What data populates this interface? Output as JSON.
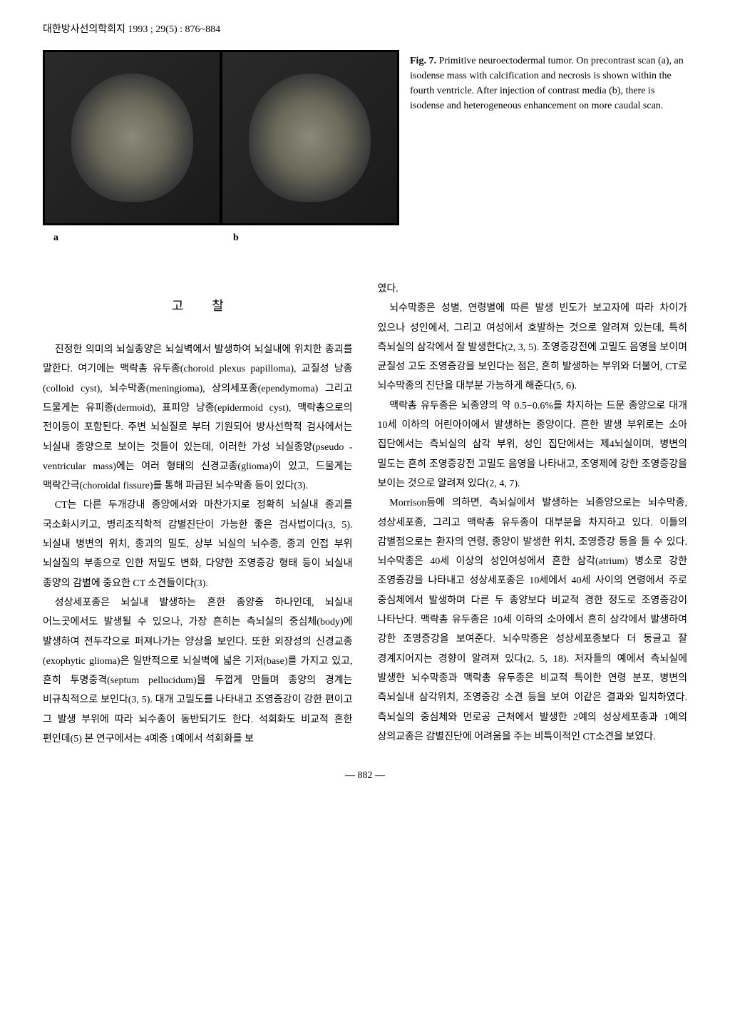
{
  "header": "대한방사선의학회지 1993 ; 29(5) : 876~884",
  "figure": {
    "label_a": "a",
    "label_b": "b",
    "caption_bold": "Fig. 7.",
    "caption_text": " Primitive neuroectodermal tumor. On precontrast scan (a), an isodense mass with calcification and necrosis is shown within the fourth ventricle. After injection of contrast media (b), there is isodense and heterogeneous enhancement on more caudal scan."
  },
  "section_title": "고찰",
  "left_column": {
    "p1": "진정한 의미의 뇌실종양은 뇌실벽에서 발생하여 뇌실내에 위치한 종괴를 말한다. 여기에는 맥락총 유두종(choroid plexus papilloma), 교질성 낭종(colloid cyst), 뇌수막종(meningioma), 상의세포종(ependymoma) 그리고 드물게는 유피종(dermoid), 표피양 낭종(epidermoid cyst), 맥락총으로의 전이등이 포함된다. 주변 뇌실질로 부터 기원되어 방사선학적 검사에서는 뇌실내 종양으로 보이는 것들이 있는데, 이러한 가성 뇌실종양(pseudo -ventricular mass)에는 여러 형태의 신경교종(glioma)이 있고, 드물게는 맥락간극(choroidal fissure)를 통해 파급된 뇌수막종 등이 있다(3).",
    "p2": "CT는 다른 두개강내 종양에서와 마찬가지로 정확히 뇌실내 종괴를 국소화시키고, 병리조직학적 감별진단이 가능한 좋은 검사법이다(3, 5). 뇌실내 병변의 위치, 종괴의 밀도, 상부 뇌실의 뇌수종, 종괴 인접 부위 뇌실질의 부종으로 인한 저밀도 변화, 다양한 조영증강 형태 등이 뇌실내 종양의 감별에 중요한 CT 소견들이다(3).",
    "p3": "성상세포종은 뇌실내 발생하는 흔한 종양중 하나인데, 뇌실내 어느곳에서도 발생될 수 있으나, 가장 흔히는 측뇌실의 중심체(body)에 발생하여 전두각으로 퍼져나가는 양상을 보인다. 또한 외장성의 신경교종(exophytic glioma)은 일반적으로 뇌실벽에 넓은 기저(base)를 가지고 있고, 흔히 투명중격(septum pellucidum)을 두껍게 만들며 종양의 경계는 비규칙적으로 보인다(3, 5). 대개 고밀도를 나타내고 조영증강이 강한 편이고 그 발생 부위에 따라 뇌수종이 동반되기도 한다. 석회화도 비교적 흔한 편인데(5) 본 연구에서는 4예중 1예에서 석회화를 보"
  },
  "right_column": {
    "p1": "였다.",
    "p2": "뇌수막종은 성별, 연령별에 따른 발생 빈도가 보고자에 따라 차이가 있으나 성인에서, 그리고 여성에서 호발하는 것으로 알려져 있는데, 특히 측뇌실의 삼각에서 잘 발생한다(2, 3, 5). 조영증강전에 고밀도 음영을 보이며 균질성 고도 조영증강을 보인다는 점은, 흔히 발생하는 부위와 더불어, CT로 뇌수막종의 진단을 대부분 가능하게 해준다(5, 6).",
    "p3": "맥락총 유두종은 뇌종양의 약 0.5−0.6%를 차지하는 드문 종양으로 대개 10세 이하의 어린아이에서 발생하는 종양이다. 흔한 발생 부위로는 소아 집단에서는 측뇌실의 삼각 부위, 성인 집단에서는 제4뇌실이며, 병변의 밀도는 흔히 조영증강전 고밀도 음영을 나타내고, 조영제에 강한 조영증강을 보이는 것으로 알려져 있다(2, 4, 7).",
    "p4": "Morrison등에 의하면, 측뇌실에서 발생하는 뇌종양으로는 뇌수막종, 성상세포종, 그리고 맥락총 유두종이 대부분을 차지하고 있다. 이들의 감별점으로는 환자의 연령, 종양이 발생한 위치, 조영증강 등을 들 수 있다. 뇌수막종은 40세 이상의 성인여성에서 흔한 삼각(atrium) 병소로 강한 조영증강을 나타내고 성상세포종은 10세에서 40세 사이의 연령에서 주로 중심체에서 발생하며 다른 두 종양보다 비교적 경한 정도로 조영증강이 나타난다. 맥락총 유두종은 10세 이하의 소아에서 흔히 삼각에서 발생하여 강한 조영증강을 보여준다. 뇌수막종은 성상세포종보다 더 둥글고 잘 경계지어지는 경향이 알려져 있다(2, 5, 18). 저자들의 예에서 측뇌실에 발생한 뇌수막종과 맥락총 유두종은 비교적 특이한 연령 분포, 병변의 측뇌실내 삼각위치, 조영증강 소견 등을 보여 이같은 결과와 일치하였다. 측뇌실의 중심체와 먼로공 근처에서 발생한 2예의 성상세포종과 1예의 상의교종은 감별진단에 어려움을 주는 비특이적인 CT소견을 보였다."
  },
  "page_number": "― 882 ―"
}
